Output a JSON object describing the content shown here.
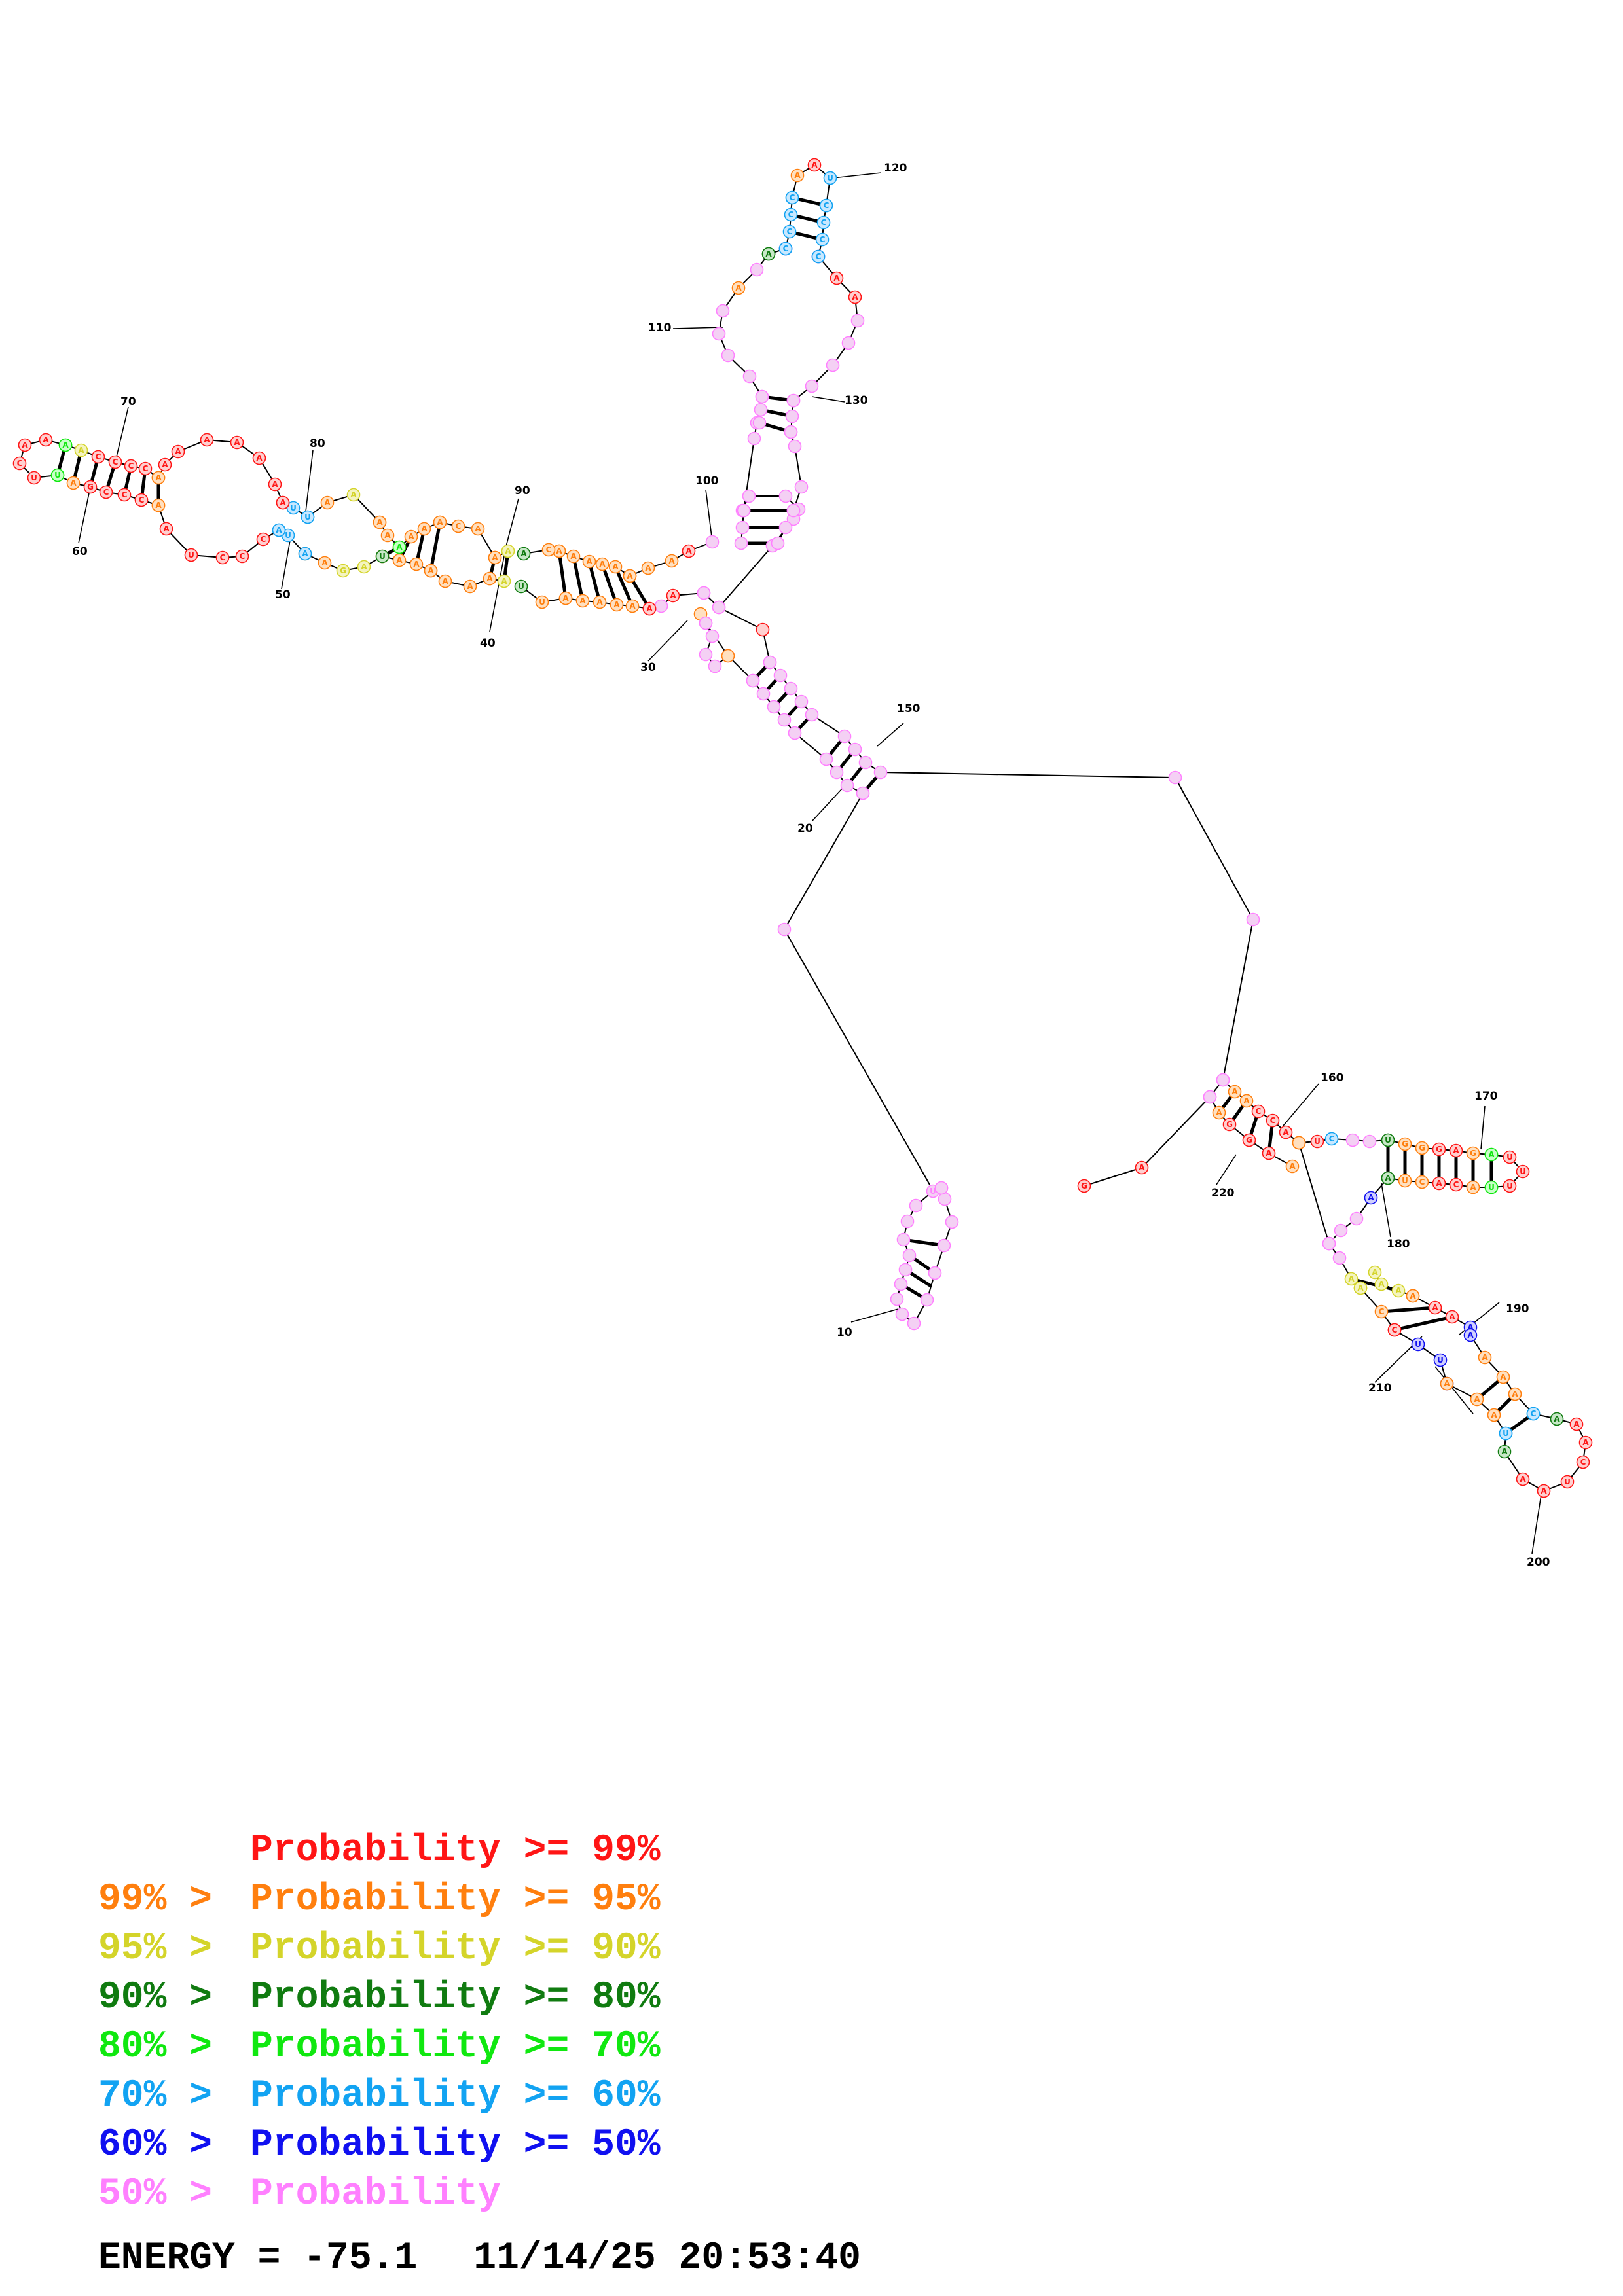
{
  "colors": {
    "p99": "#ff1515",
    "p95": "#ff7f0e",
    "p90": "#d4d42a",
    "p80": "#107b10",
    "p70": "#10e810",
    "p60": "#12a3f2",
    "p50": "#1010f0",
    "plt50": "#ff80ff"
  },
  "position_labels": {
    "n10": "10",
    "n20": "20",
    "n30": "30",
    "n40": "40",
    "n50": "50",
    "n60": "60",
    "n70": "70",
    "n80": "80",
    "n90": "90",
    "n100": "100",
    "n110": "110",
    "n120": "120",
    "n130": "130",
    "n150": "150",
    "n160": "160",
    "n170": "170",
    "n180": "180",
    "n190": "190",
    "n200": "200",
    "n210": "210",
    "n220": "220"
  },
  "legend": {
    "r0_prefix": "",
    "r0_main": "Probability >= 99%",
    "r1_prefix": "99% > ",
    "r1_main": "Probability >= 95%",
    "r2_prefix": "95% > ",
    "r2_main": "Probability >= 90%",
    "r3_prefix": "90% > ",
    "r3_main": "Probability >= 80%",
    "r4_prefix": "80% > ",
    "r4_main": "Probability >= 70%",
    "r5_prefix": "70% > ",
    "r5_main": "Probability >= 60%",
    "r6_prefix": "60% > ",
    "r6_main": "Probability >= 50%",
    "r7_prefix": "50% > ",
    "r7_main": "Probability"
  },
  "footer": {
    "energy": "ENERGY = -75.1",
    "timestamp": "11/14/25 20:53:40"
  }
}
